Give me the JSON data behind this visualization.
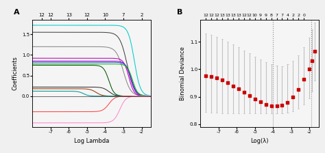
{
  "panel_A": {
    "title": "A",
    "xlabel": "Log Lambda",
    "ylabel": "Coefficients",
    "xlim": [
      -8,
      -1.5
    ],
    "ylim": [
      -0.75,
      1.85
    ],
    "top_ticks": [
      12,
      12,
      13,
      12,
      10,
      7,
      2
    ],
    "top_tick_pos": [
      -7.5,
      -7.0,
      -6.0,
      -5.0,
      -4.0,
      -3.0,
      -2.0
    ],
    "xticks": [
      -7,
      -6,
      -5,
      -4,
      -3,
      -2
    ],
    "yticks": [
      0.0,
      0.5,
      1.0,
      1.5
    ],
    "bg_color": "#F5F5F5",
    "curves": [
      {
        "color": "#00CCCC",
        "flat_y": 1.72,
        "zero_x": -2.4,
        "sharpness": 6
      },
      {
        "color": "#444444",
        "flat_y": 1.55,
        "zero_x": -2.8,
        "sharpness": 5
      },
      {
        "color": "#888888",
        "flat_y": 1.2,
        "zero_x": -3.0,
        "sharpness": 5
      },
      {
        "color": "#BB00BB",
        "flat_y": 0.92,
        "zero_x": -2.7,
        "sharpness": 7
      },
      {
        "color": "#8800CC",
        "flat_y": 0.85,
        "zero_x": -2.6,
        "sharpness": 7
      },
      {
        "color": "#4444FF",
        "flat_y": 0.82,
        "zero_x": -2.55,
        "sharpness": 7
      },
      {
        "color": "#00BB00",
        "flat_y": 0.78,
        "zero_x": -2.5,
        "sharpness": 7
      },
      {
        "color": "#005500",
        "flat_y": 0.75,
        "zero_x": -3.8,
        "sharpness": 7
      },
      {
        "color": "#333333",
        "flat_y": 0.22,
        "zero_x": -3.8,
        "sharpness": 6
      },
      {
        "color": "#993300",
        "flat_y": 0.18,
        "zero_x": -4.5,
        "sharpness": 6
      },
      {
        "color": "#009999",
        "flat_y": 0.12,
        "zero_x": -5.2,
        "sharpness": 7
      },
      {
        "color": "#FF4444",
        "flat_y": -0.38,
        "zero_x": -3.8,
        "sharpness": 6
      },
      {
        "color": "#FF88CC",
        "flat_y": -0.65,
        "zero_x": -3.2,
        "sharpness": 6
      }
    ]
  },
  "panel_B": {
    "title": "B",
    "xlabel": "Log(λ)",
    "ylabel": "Binomial Deviance",
    "xlim": [
      -8,
      -1.5
    ],
    "ylim": [
      0.79,
      1.18
    ],
    "top_ticks": [
      12,
      12,
      12,
      13,
      13,
      13,
      13,
      12,
      12,
      10,
      9,
      9,
      8,
      7,
      7,
      4,
      2,
      2,
      0
    ],
    "top_tick_pos": [
      -7.7,
      -7.4,
      -7.1,
      -6.8,
      -6.5,
      -6.2,
      -5.9,
      -5.6,
      -5.3,
      -5.0,
      -4.7,
      -4.4,
      -4.1,
      -3.8,
      -3.5,
      -3.2,
      -2.9,
      -2.6,
      -2.3
    ],
    "xticks": [
      -7,
      -6,
      -5,
      -4,
      -3,
      -2
    ],
    "yticks": [
      0.8,
      0.9,
      1.0,
      1.1
    ],
    "vline1": -4.0,
    "vline2": -1.9,
    "dot_color": "#CC0000",
    "dot_x": [
      -7.7,
      -7.4,
      -7.1,
      -6.8,
      -6.5,
      -6.2,
      -5.9,
      -5.6,
      -5.3,
      -5.0,
      -4.7,
      -4.4,
      -4.1,
      -3.8,
      -3.5,
      -3.2,
      -2.9,
      -2.6,
      -2.3,
      -2.0,
      -1.85,
      -1.7
    ],
    "dot_y": [
      0.976,
      0.974,
      0.97,
      0.962,
      0.952,
      0.94,
      0.928,
      0.916,
      0.905,
      0.893,
      0.881,
      0.872,
      0.866,
      0.866,
      0.87,
      0.88,
      0.898,
      0.926,
      0.964,
      1.0,
      1.03,
      1.065
    ],
    "error_lower": [
      0.845,
      0.843,
      0.841,
      0.84,
      0.84,
      0.84,
      0.84,
      0.84,
      0.84,
      0.84,
      0.84,
      0.84,
      0.84,
      0.84,
      0.84,
      0.842,
      0.848,
      0.858,
      0.872,
      0.895,
      0.92,
      0.96
    ],
    "error_upper": [
      1.13,
      1.125,
      1.118,
      1.11,
      1.1,
      1.09,
      1.08,
      1.068,
      1.058,
      1.046,
      1.035,
      1.025,
      1.018,
      1.013,
      1.012,
      1.018,
      1.03,
      1.05,
      1.082,
      1.115,
      1.145,
      1.17
    ],
    "bg_color": "#F5F5F5"
  }
}
